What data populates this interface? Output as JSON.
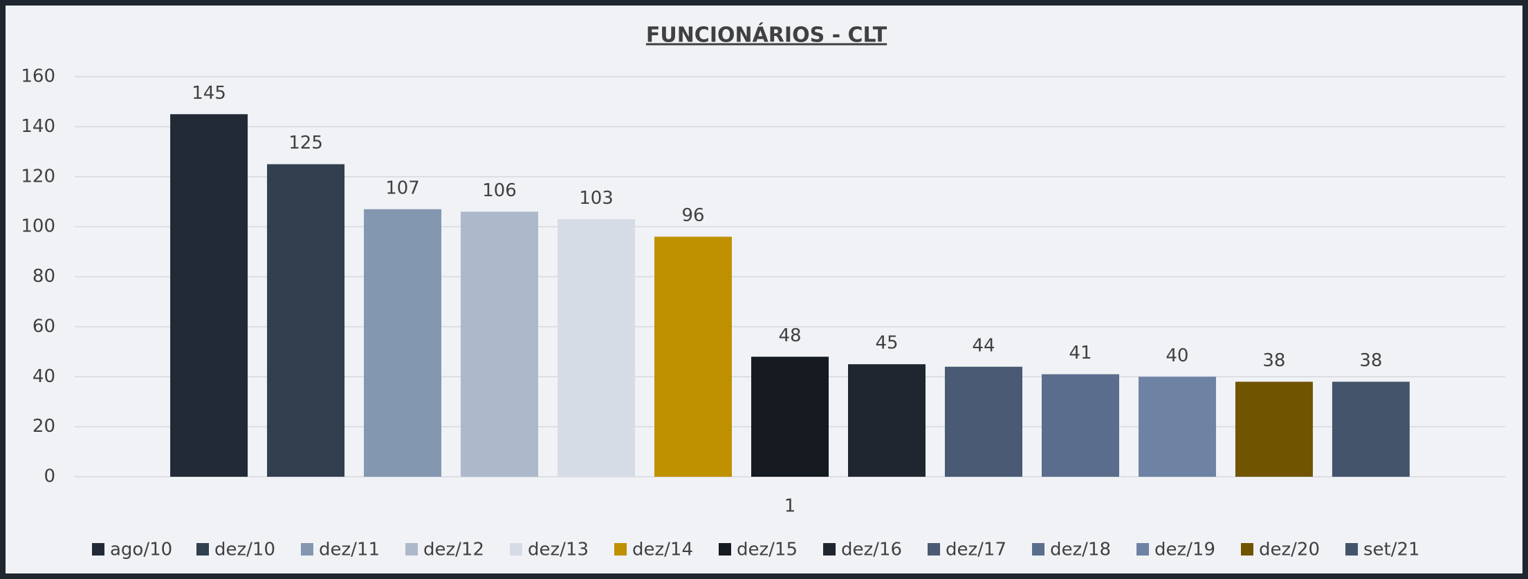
{
  "chart_data": {
    "type": "bar",
    "title": "FUNCIONÁRIOS - CLT",
    "categories": [
      "1"
    ],
    "series": [
      {
        "name": "ago/10",
        "color": "#222a35",
        "values": [
          145
        ]
      },
      {
        "name": "dez/10",
        "color": "#323f4f",
        "values": [
          125
        ]
      },
      {
        "name": "dez/11",
        "color": "#8497b0",
        "values": [
          107
        ]
      },
      {
        "name": "dez/12",
        "color": "#adb9ca",
        "values": [
          106
        ]
      },
      {
        "name": "dez/13",
        "color": "#d6dce5",
        "values": [
          103
        ]
      },
      {
        "name": "dez/14",
        "color": "#bf9000",
        "values": [
          96
        ]
      },
      {
        "name": "dez/15",
        "color": "#161b22",
        "values": [
          48
        ]
      },
      {
        "name": "dez/16",
        "color": "#1f2630",
        "values": [
          45
        ]
      },
      {
        "name": "dez/17",
        "color": "#4a5a75",
        "values": [
          44
        ]
      },
      {
        "name": "dez/18",
        "color": "#5a6d8c",
        "values": [
          41
        ]
      },
      {
        "name": "dez/19",
        "color": "#6e83a3",
        "values": [
          40
        ]
      },
      {
        "name": "dez/20",
        "color": "#705400",
        "values": [
          38
        ]
      },
      {
        "name": "set/21",
        "color": "#44546a",
        "values": [
          38
        ]
      }
    ],
    "ylim": [
      0,
      160
    ],
    "yticks": [
      0,
      20,
      40,
      60,
      80,
      100,
      120,
      140,
      160
    ],
    "grid": true,
    "legend": "bottom"
  }
}
